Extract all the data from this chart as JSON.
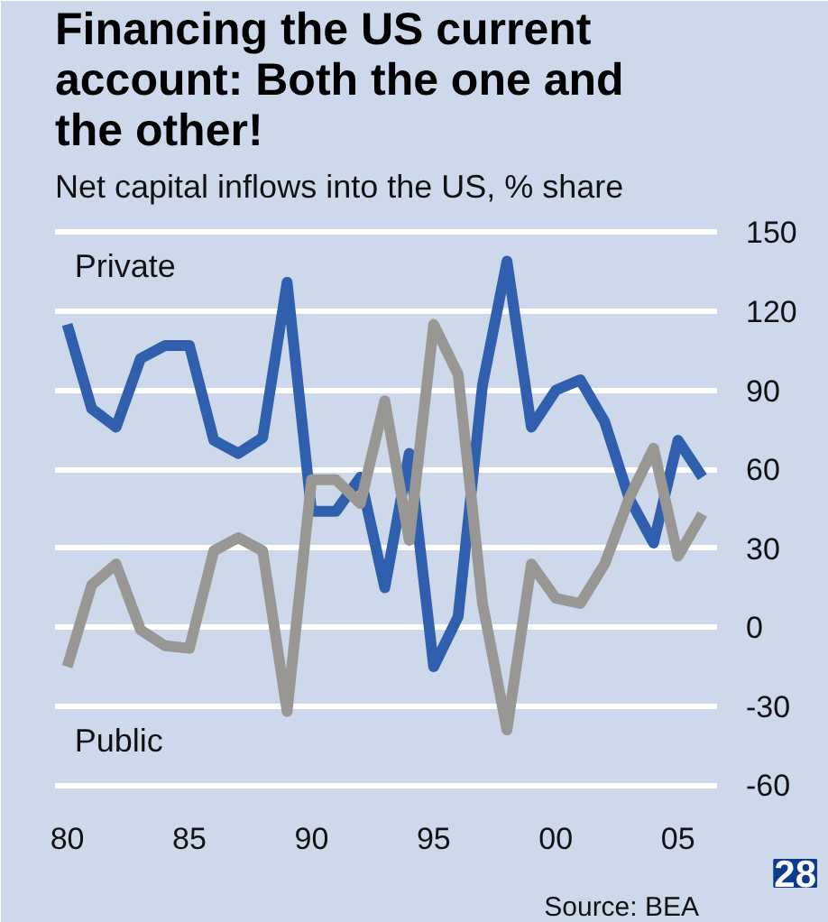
{
  "chart_data": {
    "type": "line",
    "title": "Financing the US current account: Both the one and the other!",
    "subtitle": "Net capital inflows into the US, % share",
    "x": [
      1980,
      1981,
      1982,
      1983,
      1984,
      1985,
      1986,
      1987,
      1988,
      1989,
      1990,
      1991,
      1992,
      1993,
      1994,
      1995,
      1996,
      1997,
      1998,
      1999,
      2000,
      2001,
      2002,
      2003,
      2004,
      2005,
      2006
    ],
    "series": [
      {
        "name": "Private",
        "color": "#2f5fad",
        "values": [
          115,
          83,
          76,
          102,
          107,
          107,
          71,
          66,
          72,
          131,
          44,
          44,
          57,
          15,
          66,
          -15,
          4,
          92,
          139,
          76,
          90,
          94,
          78,
          49,
          32,
          71,
          57
        ]
      },
      {
        "name": "Public",
        "color": "#999794",
        "values": [
          -15,
          16,
          24,
          -1,
          -7,
          -8,
          29,
          34,
          29,
          -32,
          56,
          56,
          47,
          86,
          33,
          115,
          96,
          9,
          -39,
          24,
          11,
          9,
          24,
          49,
          68,
          27,
          43
        ]
      }
    ],
    "xlim": [
      1979.5,
      2006.6
    ],
    "ylim": [
      -65,
      157
    ],
    "xticks": [
      {
        "value": 1980,
        "label": "80"
      },
      {
        "value": 1985,
        "label": "85"
      },
      {
        "value": 1990,
        "label": "90"
      },
      {
        "value": 1995,
        "label": "95"
      },
      {
        "value": 2000,
        "label": "00"
      },
      {
        "value": 2005,
        "label": "05"
      }
    ],
    "yticks": [
      -60,
      -30,
      0,
      30,
      60,
      90,
      120,
      150
    ],
    "grid": "y",
    "legend": false,
    "marker": "none",
    "line_style": "solid",
    "annotations": [
      "Source: BEA",
      "28"
    ]
  }
}
